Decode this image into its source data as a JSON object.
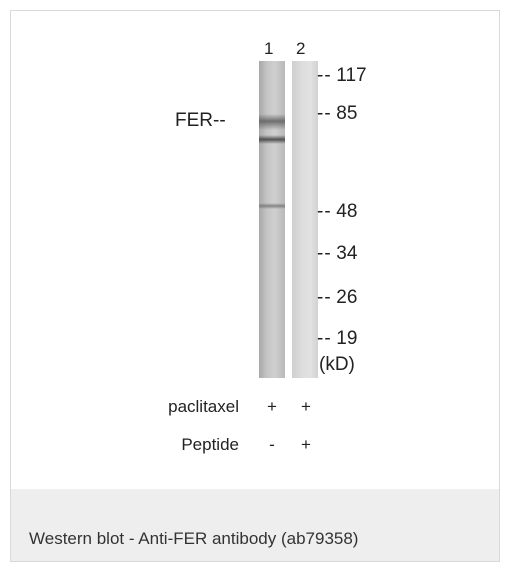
{
  "blot": {
    "lanes": [
      "1",
      "2"
    ],
    "band_label": "FER--",
    "markers": [
      {
        "dash": "--",
        "value": "117"
      },
      {
        "dash": "--",
        "value": "85"
      },
      {
        "dash": "--",
        "value": "48"
      },
      {
        "dash": "--",
        "value": "34"
      },
      {
        "dash": "--",
        "value": "26"
      },
      {
        "dash": "--",
        "value": "19"
      }
    ],
    "unit": "(kD)",
    "conditions": [
      {
        "label": "paclitaxel",
        "lane1": "+",
        "lane2": "+"
      },
      {
        "label": "Peptide",
        "lane1": "-",
        "lane2": "+"
      }
    ]
  },
  "caption": "Western blot - Anti-FER antibody (ab79358)"
}
